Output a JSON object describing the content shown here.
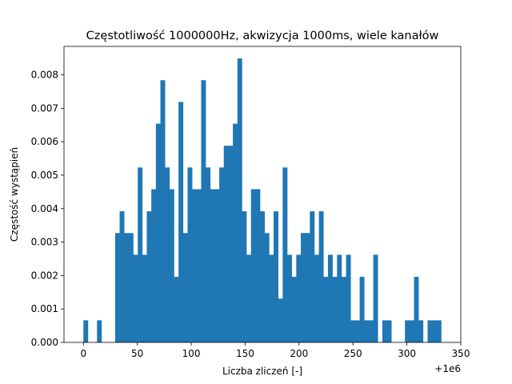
{
  "chart_data": {
    "type": "bar",
    "title": "Częstotliwość 1000000Hz, akwizycja 1000ms, wiele kanałów",
    "xlabel": "Liczba zliczeń [-]",
    "ylabel": "Częstość wystąpień",
    "x_offset_label": "+1e6",
    "xlim": [
      -18,
      350
    ],
    "ylim": [
      0,
      0.00885
    ],
    "x_ticks": [
      0,
      50,
      100,
      150,
      200,
      250,
      300,
      350
    ],
    "y_ticks": [
      0.0,
      0.001,
      0.002,
      0.003,
      0.004,
      0.005,
      0.006,
      0.007,
      0.008
    ],
    "y_tick_labels": [
      "0.000",
      "0.001",
      "0.002",
      "0.003",
      "0.004",
      "0.005",
      "0.006",
      "0.007",
      "0.008"
    ],
    "bar_color": "#1f77b4",
    "bin_start": 0,
    "bin_width": 4.2,
    "values": [
      0.00066,
      0,
      0,
      0.00066,
      0,
      0,
      0,
      0.00327,
      0.00392,
      0.00327,
      0.00327,
      0.00262,
      0.00523,
      0.00262,
      0.00392,
      0.00458,
      0.00654,
      0.00784,
      0.00523,
      0.00458,
      0.00196,
      0.00719,
      0.00327,
      0.00523,
      0.00458,
      0.00458,
      0.00784,
      0.00523,
      0.00458,
      0.00458,
      0.00523,
      0.00588,
      0.00588,
      0.00654,
      0.00849,
      0.00392,
      0.00262,
      0.00458,
      0.00458,
      0.00392,
      0.00327,
      0.00262,
      0.00392,
      0.00131,
      0.00523,
      0.00262,
      0.00196,
      0.00262,
      0.00327,
      0.00327,
      0.00392,
      0.00262,
      0.00392,
      0.00196,
      0.00262,
      0.00196,
      0.00262,
      0.00196,
      0.00262,
      0.00066,
      0.00066,
      0.00196,
      0.00066,
      0.00066,
      0.00262,
      0,
      0.00066,
      0.00066,
      0,
      0,
      0,
      0.00066,
      0.00066,
      0.00196,
      0.00066,
      0,
      0.00066,
      0.00066,
      0.00066
    ]
  }
}
